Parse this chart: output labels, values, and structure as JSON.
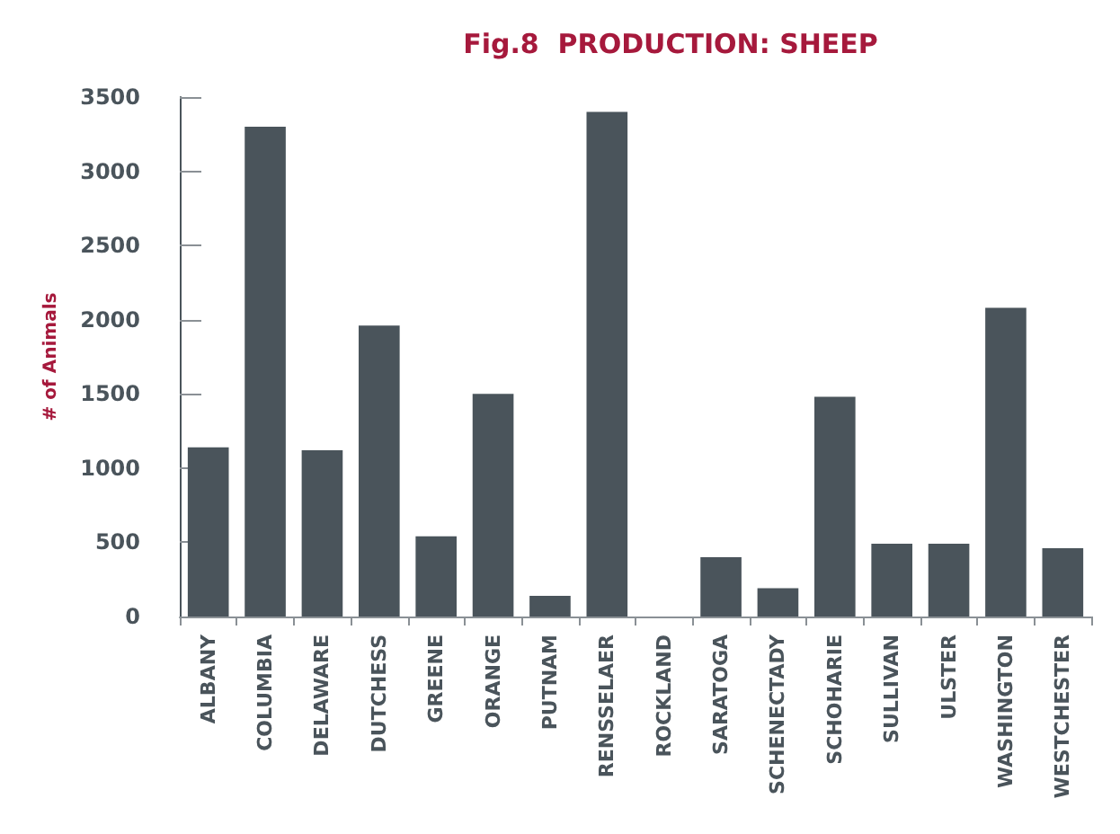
{
  "chart_data": {
    "type": "bar",
    "title": "Fig.8  PRODUCTION: SHEEP",
    "ylabel": "# of Animals",
    "categories": [
      "ALBANY",
      "COLUMBIA",
      "DELAWARE",
      "DUTCHESS",
      "GREENE",
      "ORANGE",
      "PUTNAM",
      "RENSSELAER",
      "ROCKLAND",
      "SARATOGA",
      "SCHENECTADY",
      "SCHOHARIE",
      "SULLIVAN",
      "ULSTER",
      "WASHINGTON",
      "WESTCHESTER"
    ],
    "values": [
      1140,
      3300,
      1120,
      1960,
      540,
      1500,
      140,
      3400,
      0,
      400,
      190,
      1480,
      490,
      490,
      2080,
      460
    ],
    "color": "#4a545b",
    "ylim": [
      0,
      3500
    ],
    "yticks": [
      0,
      500,
      1000,
      1500,
      2000,
      2500,
      3000,
      3500
    ],
    "grid": false,
    "legend": false
  }
}
